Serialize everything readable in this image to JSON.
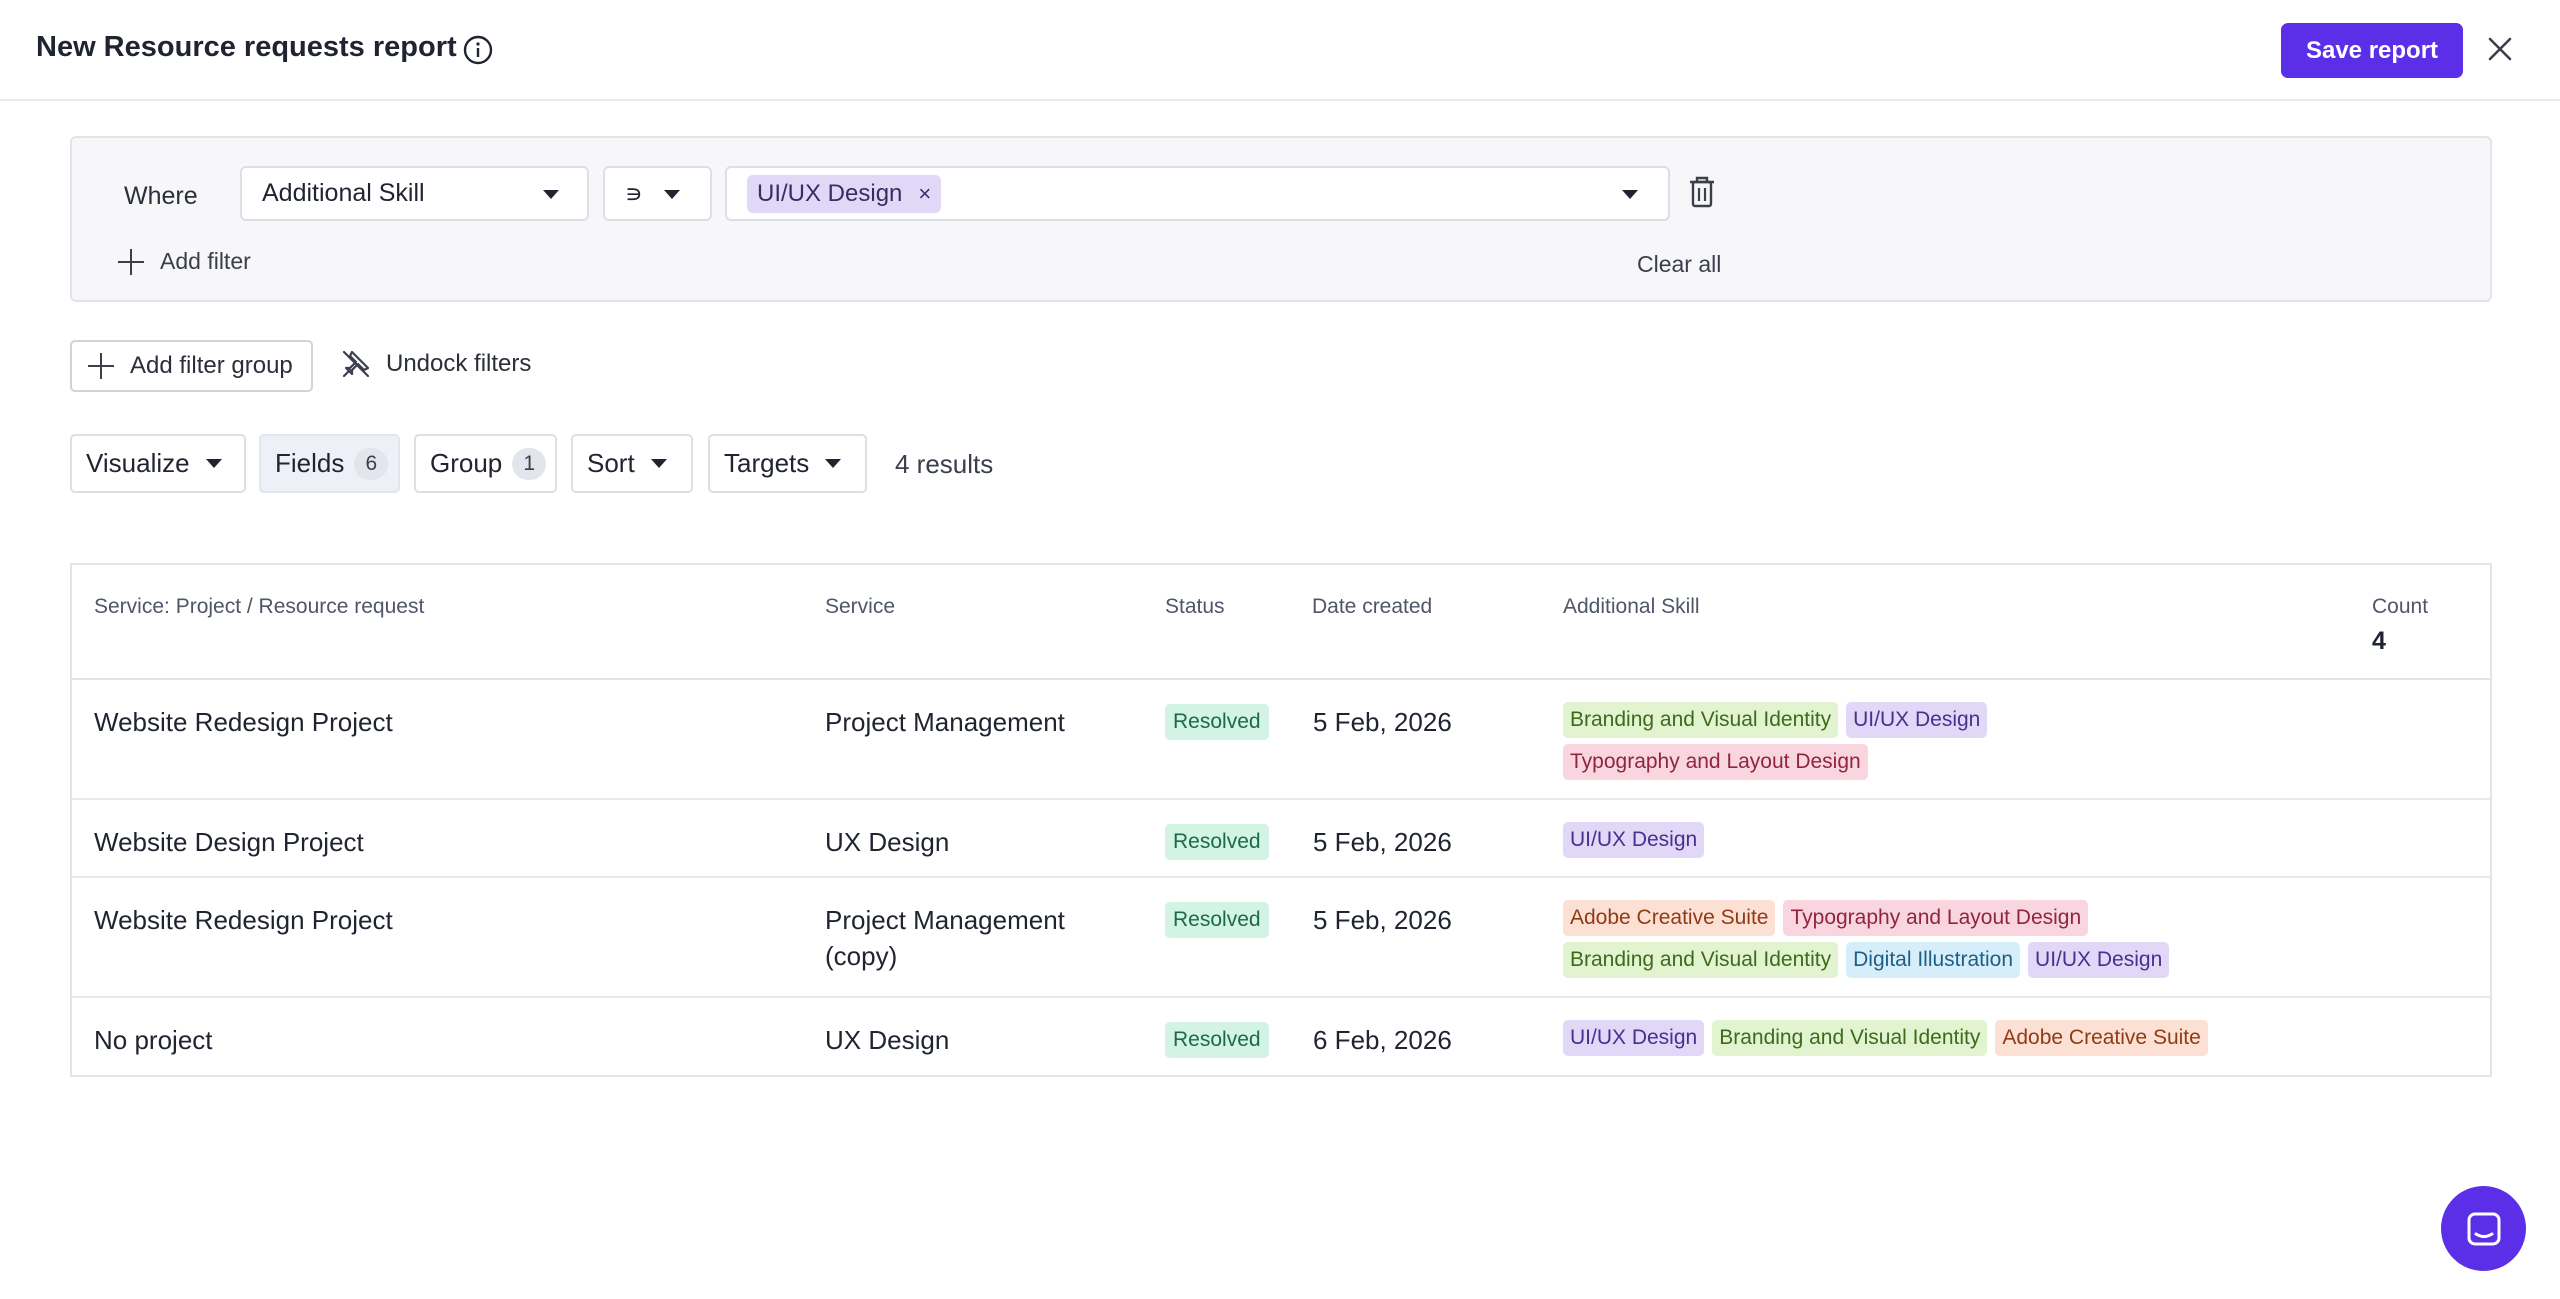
{
  "header": {
    "title": "New Resource requests report",
    "save_label": "Save report"
  },
  "filter": {
    "where_label": "Where",
    "field_value": "Additional Skill",
    "operator_value": "∍",
    "selected_values": [
      "UI/UX Design"
    ],
    "remove_symbol": "×",
    "add_filter_label": "Add filter",
    "clear_all_label": "Clear all"
  },
  "actions": {
    "add_filter_group_label": "Add filter group",
    "undock_label": "Undock filters"
  },
  "toolbar": {
    "visualize_label": "Visualize",
    "fields_label": "Fields",
    "fields_count": "6",
    "group_label": "Group",
    "group_count": "1",
    "sort_label": "Sort",
    "targets_label": "Targets",
    "results_text": "4 results"
  },
  "table": {
    "columns": [
      "Service: Project / Resource request",
      "Service",
      "Status",
      "Date created",
      "Additional Skill",
      "Count"
    ],
    "count_total": "4",
    "rows": [
      {
        "project": "Website Redesign Project",
        "service": "Project Management",
        "status": "Resolved",
        "date": "5 Feb, 2026",
        "skills": [
          "Branding and Visual Identity",
          "UI/UX Design",
          "Typography and Layout Design"
        ]
      },
      {
        "project": "Website Design Project",
        "service": "UX Design",
        "status": "Resolved",
        "date": "5 Feb, 2026",
        "skills": [
          "UI/UX Design"
        ]
      },
      {
        "project": "Website Redesign Project",
        "service": "Project Management (copy)",
        "status": "Resolved",
        "date": "5 Feb, 2026",
        "skills": [
          "Adobe Creative Suite",
          "Typography and Layout Design",
          "Branding and Visual Identity",
          "Digital Illustration",
          "UI/UX Design"
        ]
      },
      {
        "project": "No project",
        "service": "UX Design",
        "status": "Resolved",
        "date": "6 Feb, 2026",
        "skills": [
          "UI/UX Design",
          "Branding and Visual Identity",
          "Adobe Creative Suite"
        ]
      }
    ]
  },
  "skill_colors": {
    "Branding and Visual Identity": {
      "bg": "#e2f3cf",
      "fg": "#3e6a1e"
    },
    "UI/UX Design": {
      "bg": "#e1d8f8",
      "fg": "#4a2f8f"
    },
    "Typography and Layout Design": {
      "bg": "#f9d6df",
      "fg": "#8f2443"
    },
    "Adobe Creative Suite": {
      "bg": "#fde0d4",
      "fg": "#8f3b18"
    },
    "Digital Illustration": {
      "bg": "#d6eefa",
      "fg": "#1d5f85"
    }
  },
  "colors": {
    "accent": "#5b2ee8",
    "status_resolved_bg": "#d3f3e4",
    "status_resolved_fg": "#1c6b48"
  },
  "icons": {
    "info": "info-icon",
    "close": "close-icon",
    "trash": "trash-icon",
    "plus": "plus-icon",
    "undock": "unpin-icon",
    "chat": "chat-icon"
  }
}
